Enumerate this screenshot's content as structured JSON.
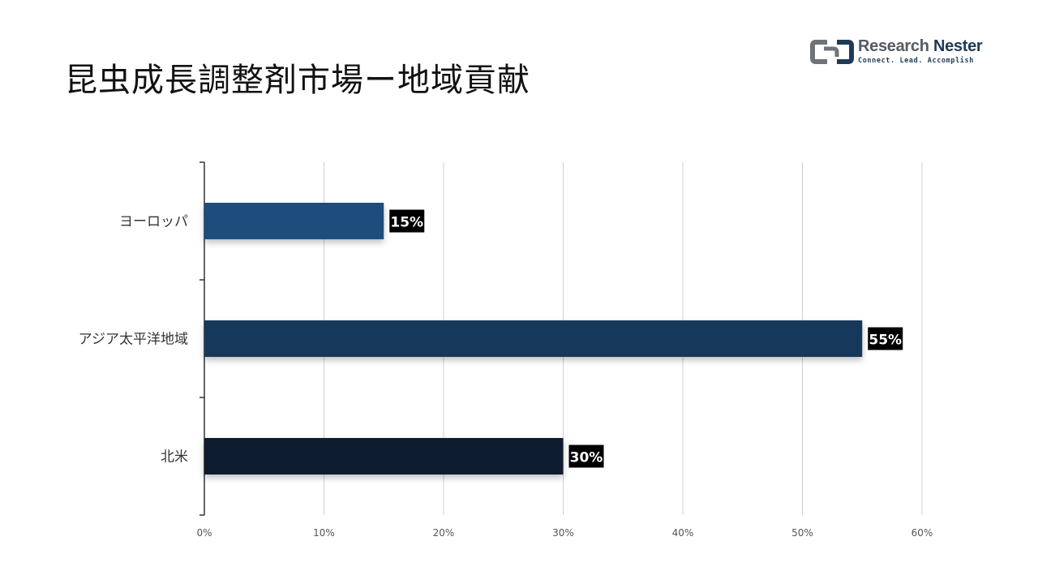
{
  "title": "昆虫成長調整剤市場ー地域貢献",
  "logo": {
    "name_part1": "Research",
    "name_part2": "Nester",
    "tagline": "Connect. Lead. Accomplish",
    "icon": "research-nester-logo-icon"
  },
  "chart_data": {
    "type": "bar",
    "orientation": "horizontal",
    "categories": [
      "ヨーロッパ",
      "アジア太平洋地域",
      "北米"
    ],
    "values": [
      15,
      55,
      30
    ],
    "value_labels": [
      "15%",
      "55%",
      "30%"
    ],
    "bar_colors": [
      "#1f4e7d",
      "#16375a",
      "#0d1e2e"
    ],
    "x_ticks": [
      "0%",
      "10%",
      "20%",
      "30%",
      "40%",
      "50%",
      "60%"
    ],
    "xlim": [
      0,
      60
    ],
    "grid": "vertical",
    "legend": "none"
  }
}
